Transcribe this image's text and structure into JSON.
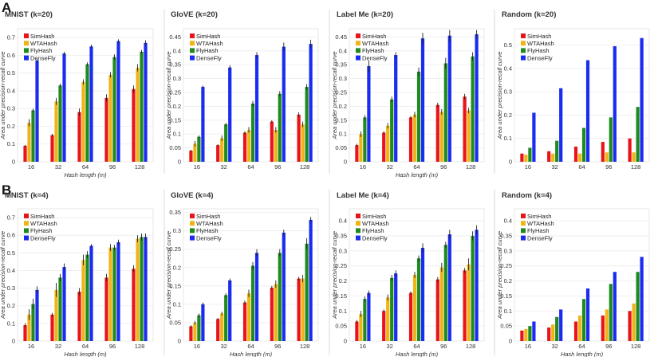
{
  "figure": {
    "row_labels": [
      "A",
      "B"
    ],
    "series_colors": {
      "SimHash": "#e8141a",
      "WTAHash": "#f0b416",
      "FlyHash": "#1f8a1f",
      "DenseFly": "#1a2cf0"
    }
  },
  "chart_data": [
    {
      "type": "bar",
      "title": "MNIST (k=20)",
      "xlabel": "Hash length (m)",
      "ylabel": "Area under precision-recall curve",
      "categories": [
        "16",
        "32",
        "64",
        "96",
        "128"
      ],
      "ylim": [
        0,
        0.75
      ],
      "yticks": [
        0,
        0.1,
        0.2,
        0.3,
        0.4,
        0.5,
        0.6,
        0.7
      ],
      "series": [
        {
          "name": "SimHash",
          "values": [
            0.09,
            0.15,
            0.28,
            0.36,
            0.41
          ],
          "errors": [
            0.005,
            0.008,
            0.02,
            0.02,
            0.02
          ]
        },
        {
          "name": "WTAHash",
          "values": [
            0.22,
            0.34,
            0.45,
            0.49,
            0.53
          ],
          "errors": [
            0.02,
            0.02,
            0.015,
            0.015,
            0.02
          ]
        },
        {
          "name": "FlyHash",
          "values": [
            0.29,
            0.43,
            0.55,
            0.59,
            0.62
          ],
          "errors": [
            0.01,
            0.01,
            0.01,
            0.015,
            0.01
          ]
        },
        {
          "name": "DenseFly",
          "values": [
            0.57,
            0.61,
            0.65,
            0.68,
            0.67
          ],
          "errors": [
            0.01,
            0.01,
            0.01,
            0.01,
            0.015
          ]
        }
      ]
    },
    {
      "type": "bar",
      "title": "GloVE (k=20)",
      "xlabel": "",
      "ylabel": "Area under precision-recall curve",
      "categories": [
        "16",
        "32",
        "64",
        "96",
        "128"
      ],
      "ylim": [
        0,
        0.48
      ],
      "yticks": [
        0,
        0.05,
        0.1,
        0.15,
        0.2,
        0.25,
        0.3,
        0.35,
        0.4,
        0.45
      ],
      "series": [
        {
          "name": "SimHash",
          "values": [
            0.04,
            0.06,
            0.105,
            0.145,
            0.17
          ],
          "errors": [
            0.003,
            0.003,
            0.005,
            0.005,
            0.008
          ]
        },
        {
          "name": "WTAHash",
          "values": [
            0.065,
            0.085,
            0.115,
            0.115,
            0.135
          ],
          "errors": [
            0.01,
            0.01,
            0.01,
            0.01,
            0.01
          ]
        },
        {
          "name": "FlyHash",
          "values": [
            0.09,
            0.135,
            0.21,
            0.245,
            0.27
          ],
          "errors": [
            0.005,
            0.005,
            0.01,
            0.01,
            0.01
          ]
        },
        {
          "name": "DenseFly",
          "values": [
            0.27,
            0.34,
            0.385,
            0.415,
            0.425
          ],
          "errors": [
            0.005,
            0.008,
            0.01,
            0.015,
            0.015
          ]
        }
      ]
    },
    {
      "type": "bar",
      "title": "Label Me (k=20)",
      "xlabel": "Hash length (m)",
      "ylabel": "Area under precision-recall curve",
      "categories": [
        "16",
        "32",
        "64",
        "96",
        "128"
      ],
      "ylim": [
        0,
        0.48
      ],
      "yticks": [
        0,
        0.05,
        0.1,
        0.15,
        0.2,
        0.25,
        0.3,
        0.35,
        0.4,
        0.45
      ],
      "series": [
        {
          "name": "SimHash",
          "values": [
            0.06,
            0.105,
            0.16,
            0.205,
            0.235
          ],
          "errors": [
            0.005,
            0.005,
            0.005,
            0.008,
            0.01
          ]
        },
        {
          "name": "WTAHash",
          "values": [
            0.1,
            0.13,
            0.17,
            0.18,
            0.185
          ],
          "errors": [
            0.01,
            0.01,
            0.01,
            0.01,
            0.01
          ]
        },
        {
          "name": "FlyHash",
          "values": [
            0.16,
            0.225,
            0.325,
            0.355,
            0.38
          ],
          "errors": [
            0.008,
            0.01,
            0.015,
            0.02,
            0.015
          ]
        },
        {
          "name": "DenseFly",
          "values": [
            0.345,
            0.385,
            0.445,
            0.455,
            0.46
          ],
          "errors": [
            0.02,
            0.01,
            0.02,
            0.02,
            0.015
          ]
        }
      ]
    },
    {
      "type": "bar",
      "title": "Random (k=20)",
      "xlabel": "",
      "ylabel": "Area under precision-recall curve",
      "categories": [
        "16",
        "32",
        "64",
        "96",
        "128"
      ],
      "ylim": [
        0,
        0.57
      ],
      "yticks": [
        0,
        0.1,
        0.2,
        0.3,
        0.4,
        0.5
      ],
      "series": [
        {
          "name": "SimHash",
          "values": [
            0.035,
            0.045,
            0.065,
            0.085,
            0.1
          ],
          "errors": [
            0.002,
            0.002,
            0.002,
            0.002,
            0.002
          ]
        },
        {
          "name": "WTAHash",
          "values": [
            0.03,
            0.035,
            0.035,
            0.04,
            0.04
          ],
          "errors": [
            0.002,
            0.002,
            0.002,
            0.002,
            0.002
          ]
        },
        {
          "name": "FlyHash",
          "values": [
            0.06,
            0.09,
            0.145,
            0.19,
            0.235
          ],
          "errors": [
            0.002,
            0.002,
            0.002,
            0.002,
            0.002
          ]
        },
        {
          "name": "DenseFly",
          "values": [
            0.21,
            0.315,
            0.435,
            0.495,
            0.53
          ],
          "errors": [
            0.002,
            0.002,
            0.002,
            0.002,
            0.002
          ]
        }
      ]
    },
    {
      "type": "bar",
      "title": "MNIST (k=4)",
      "xlabel": "Hash length (m)",
      "ylabel": "Area under precision-recall curve",
      "categories": [
        "16",
        "32",
        "64",
        "96",
        "128"
      ],
      "ylim": [
        0,
        0.75
      ],
      "yticks": [
        0,
        0.1,
        0.2,
        0.3,
        0.4,
        0.5,
        0.6,
        0.7
      ],
      "series": [
        {
          "name": "SimHash",
          "values": [
            0.09,
            0.15,
            0.28,
            0.36,
            0.41
          ],
          "errors": [
            0.01,
            0.01,
            0.02,
            0.02,
            0.02
          ]
        },
        {
          "name": "WTAHash",
          "values": [
            0.15,
            0.29,
            0.46,
            0.53,
            0.58
          ],
          "errors": [
            0.03,
            0.04,
            0.03,
            0.02,
            0.02
          ]
        },
        {
          "name": "FlyHash",
          "values": [
            0.21,
            0.36,
            0.49,
            0.53,
            0.59
          ],
          "errors": [
            0.03,
            0.02,
            0.02,
            0.015,
            0.02
          ]
        },
        {
          "name": "DenseFly",
          "values": [
            0.29,
            0.42,
            0.54,
            0.56,
            0.59
          ],
          "errors": [
            0.02,
            0.02,
            0.01,
            0.015,
            0.02
          ]
        }
      ]
    },
    {
      "type": "bar",
      "title": "GloVE (k=4)",
      "xlabel": "Hash length (m)",
      "ylabel": "Area under precision-recall curve",
      "categories": [
        "16",
        "32",
        "64",
        "96",
        "128"
      ],
      "ylim": [
        0,
        0.36
      ],
      "yticks": [
        0,
        0.05,
        0.1,
        0.15,
        0.2,
        0.25,
        0.3,
        0.35
      ],
      "series": [
        {
          "name": "SimHash",
          "values": [
            0.04,
            0.06,
            0.105,
            0.145,
            0.17
          ],
          "errors": [
            0.003,
            0.003,
            0.005,
            0.005,
            0.005
          ]
        },
        {
          "name": "WTAHash",
          "values": [
            0.05,
            0.075,
            0.13,
            0.155,
            0.17
          ],
          "errors": [
            0.005,
            0.005,
            0.01,
            0.01,
            0.01
          ]
        },
        {
          "name": "FlyHash",
          "values": [
            0.07,
            0.125,
            0.205,
            0.24,
            0.265
          ],
          "errors": [
            0.005,
            0.005,
            0.01,
            0.01,
            0.015
          ]
        },
        {
          "name": "DenseFly",
          "values": [
            0.1,
            0.165,
            0.24,
            0.295,
            0.33
          ],
          "errors": [
            0.005,
            0.005,
            0.01,
            0.008,
            0.008
          ]
        }
      ]
    },
    {
      "type": "bar",
      "title": "Label Me (k=4)",
      "xlabel": "Hash length (m)",
      "ylabel": "Area under precision-recall curve",
      "categories": [
        "16",
        "32",
        "64",
        "96",
        "128"
      ],
      "ylim": [
        0,
        0.44
      ],
      "yticks": [
        0,
        0.05,
        0.1,
        0.15,
        0.2,
        0.25,
        0.3,
        0.35,
        0.4
      ],
      "series": [
        {
          "name": "SimHash",
          "values": [
            0.065,
            0.1,
            0.16,
            0.205,
            0.235
          ],
          "errors": [
            0.005,
            0.005,
            0.005,
            0.008,
            0.008
          ]
        },
        {
          "name": "WTAHash",
          "values": [
            0.09,
            0.145,
            0.22,
            0.245,
            0.255
          ],
          "errors": [
            0.01,
            0.01,
            0.01,
            0.015,
            0.02
          ]
        },
        {
          "name": "FlyHash",
          "values": [
            0.14,
            0.21,
            0.275,
            0.32,
            0.35
          ],
          "errors": [
            0.008,
            0.01,
            0.01,
            0.01,
            0.015
          ]
        },
        {
          "name": "DenseFly",
          "values": [
            0.16,
            0.225,
            0.31,
            0.355,
            0.37
          ],
          "errors": [
            0.008,
            0.01,
            0.015,
            0.015,
            0.015
          ]
        }
      ]
    },
    {
      "type": "bar",
      "title": "Random (k=4)",
      "xlabel": "Hash length (m)",
      "ylabel": "Area under precision-recall curve",
      "categories": [
        "16",
        "32",
        "64",
        "96",
        "128"
      ],
      "ylim": [
        0,
        0.44
      ],
      "yticks": [
        0,
        0.05,
        0.1,
        0.15,
        0.2,
        0.25,
        0.3,
        0.35,
        0.4
      ],
      "series": [
        {
          "name": "SimHash",
          "values": [
            0.035,
            0.045,
            0.065,
            0.085,
            0.1
          ],
          "errors": [
            0.002,
            0.002,
            0.002,
            0.002,
            0.002
          ]
        },
        {
          "name": "WTAHash",
          "values": [
            0.04,
            0.055,
            0.085,
            0.105,
            0.125
          ],
          "errors": [
            0.002,
            0.002,
            0.002,
            0.002,
            0.002
          ]
        },
        {
          "name": "FlyHash",
          "values": [
            0.05,
            0.08,
            0.14,
            0.19,
            0.23
          ],
          "errors": [
            0.002,
            0.002,
            0.002,
            0.002,
            0.002
          ]
        },
        {
          "name": "DenseFly",
          "values": [
            0.065,
            0.105,
            0.175,
            0.23,
            0.28
          ],
          "errors": [
            0.002,
            0.002,
            0.002,
            0.002,
            0.002
          ]
        }
      ]
    }
  ]
}
